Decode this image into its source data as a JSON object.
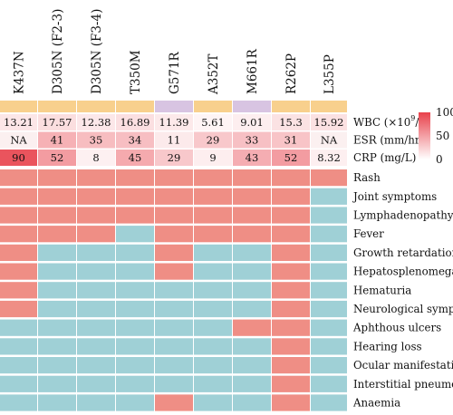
{
  "chart_data": {
    "type": "heatmap",
    "columns": [
      "K437N",
      "D305N (F2-3)",
      "D305N (F3-4)",
      "T350M",
      "G571R",
      "A352T",
      "M661R",
      "R262P",
      "L355P"
    ],
    "header_groups": [
      "orange",
      "orange",
      "orange",
      "orange",
      "purple",
      "orange",
      "purple",
      "orange",
      "orange"
    ],
    "lab_rows": [
      {
        "label_prefix": "WBC (×10",
        "label_sup": "9",
        "label_suffix": "/L)",
        "values": [
          "13.21",
          "17.57",
          "12.38",
          "16.89",
          "11.39",
          "5.61",
          "9.01",
          "15.3",
          "15.92"
        ],
        "levels": [
          13.21,
          17.57,
          12.38,
          16.89,
          11.39,
          5.61,
          9.01,
          15.3,
          15.92
        ]
      },
      {
        "label": "ESR (mm/hr)",
        "values": [
          "NA",
          "41",
          "35",
          "34",
          "11",
          "29",
          "33",
          "31",
          "NA"
        ],
        "levels": [
          0,
          41,
          35,
          34,
          11,
          29,
          33,
          31,
          0
        ]
      },
      {
        "label": "CRP (mg/L)",
        "values": [
          "90",
          "52",
          "8",
          "45",
          "29",
          "9",
          "43",
          "52",
          "8.32"
        ],
        "levels": [
          90,
          52,
          8,
          45,
          29,
          9,
          43,
          52,
          8.32
        ]
      }
    ],
    "color_scale": {
      "min": 0,
      "max": 100,
      "ticks": [
        "100",
        "50",
        "0"
      ],
      "low_color": "#ffffff",
      "high_color": "#e8414b"
    },
    "symptom_rows": [
      {
        "label": "Rash",
        "values": [
          1,
          1,
          1,
          1,
          1,
          1,
          1,
          1,
          1
        ]
      },
      {
        "label": "Joint symptoms",
        "values": [
          1,
          1,
          1,
          1,
          1,
          1,
          1,
          1,
          0
        ]
      },
      {
        "label": "Lymphadenopathy",
        "values": [
          1,
          1,
          1,
          1,
          1,
          1,
          1,
          1,
          0
        ]
      },
      {
        "label": "Fever",
        "values": [
          1,
          1,
          1,
          0,
          1,
          1,
          1,
          1,
          0
        ]
      },
      {
        "label": "Growth retardation",
        "values": [
          1,
          0,
          0,
          0,
          1,
          0,
          0,
          1,
          0
        ]
      },
      {
        "label": "Hepatosplenomegaly",
        "values": [
          1,
          0,
          0,
          0,
          1,
          0,
          0,
          1,
          0
        ]
      },
      {
        "label": "Hematuria",
        "values": [
          1,
          0,
          0,
          0,
          0,
          0,
          0,
          1,
          0
        ]
      },
      {
        "label": "Neurological symptoms",
        "values": [
          1,
          0,
          0,
          0,
          0,
          0,
          0,
          1,
          0
        ]
      },
      {
        "label": "Aphthous ulcers",
        "values": [
          0,
          0,
          0,
          0,
          0,
          0,
          1,
          1,
          0
        ]
      },
      {
        "label": "Hearing loss",
        "values": [
          0,
          0,
          0,
          0,
          0,
          0,
          0,
          1,
          0
        ]
      },
      {
        "label": "Ocular manifestations",
        "values": [
          0,
          0,
          0,
          0,
          0,
          0,
          0,
          1,
          0
        ]
      },
      {
        "label": "Interstitial pneumonia",
        "values": [
          0,
          0,
          0,
          0,
          0,
          0,
          0,
          1,
          0
        ]
      },
      {
        "label": "Anaemia",
        "values": [
          0,
          0,
          0,
          0,
          1,
          0,
          0,
          1,
          0
        ]
      }
    ],
    "colors": {
      "present": "#ef8e85",
      "absent": "#9fd0d6",
      "orange": "#f8d08d",
      "purple": "#d8c4e2"
    }
  }
}
